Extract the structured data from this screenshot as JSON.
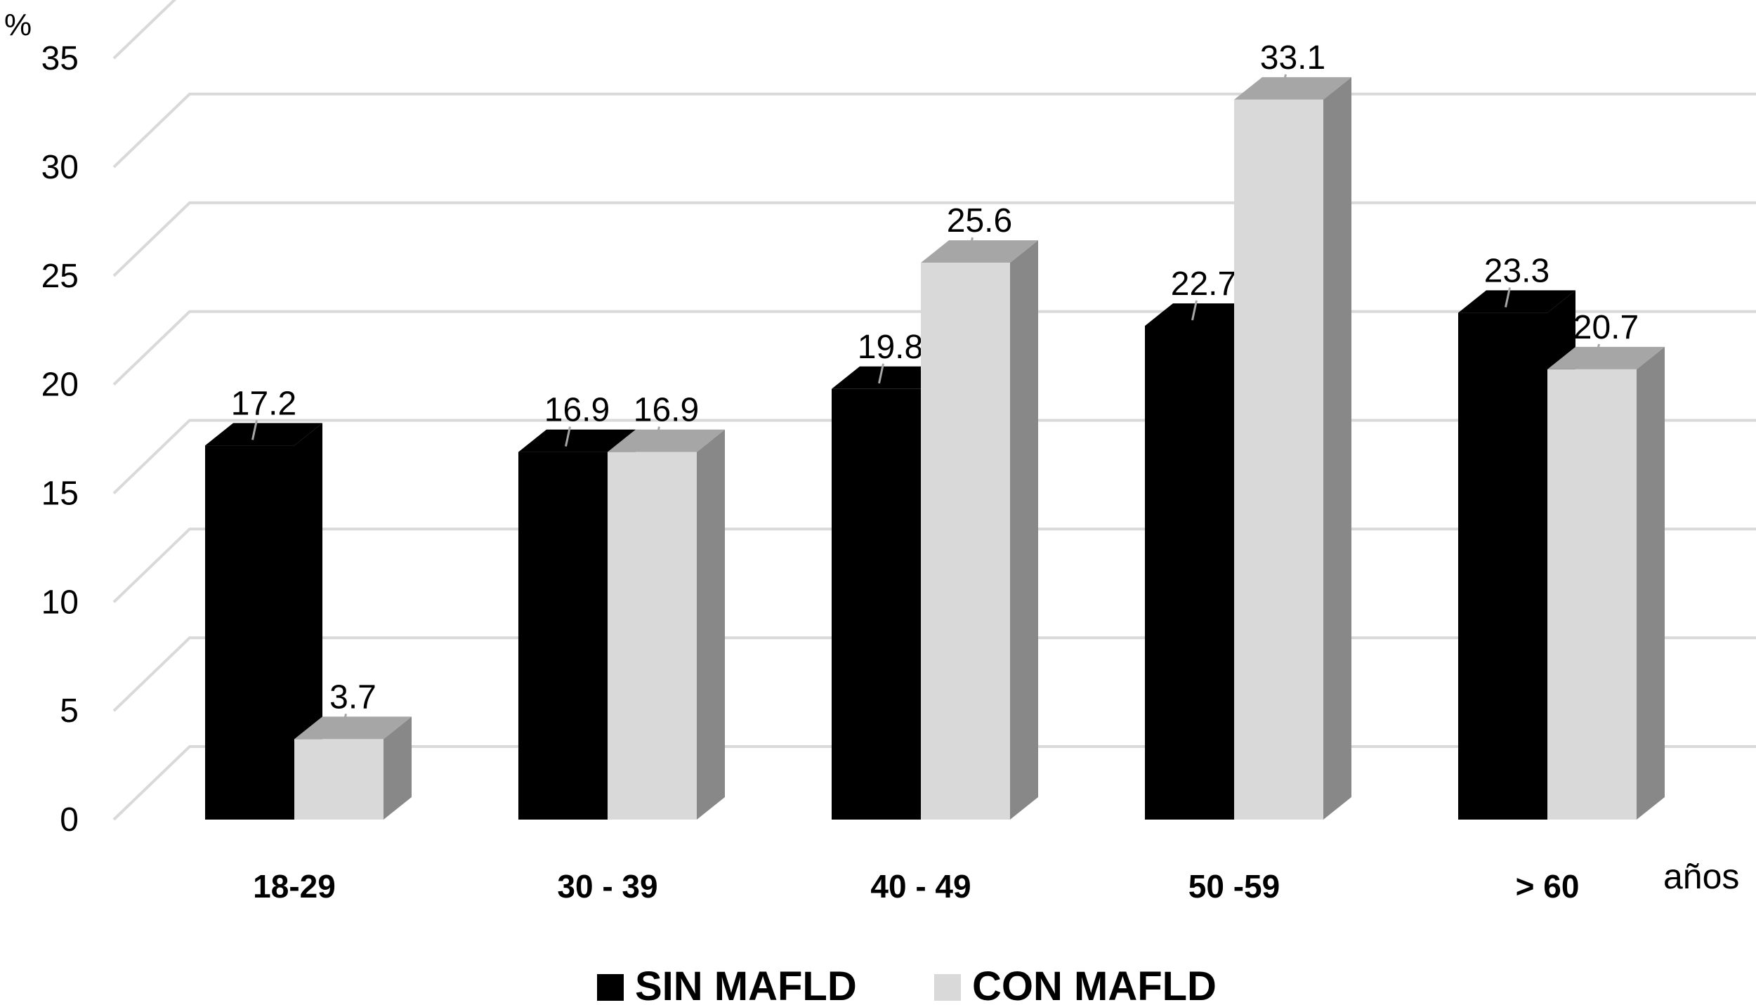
{
  "chart_data": {
    "type": "bar",
    "ylabel": "%",
    "xlabel": "años",
    "ylim": [
      0,
      35
    ],
    "y_ticks": [
      "0",
      "5",
      "10",
      "15",
      "20",
      "25",
      "30",
      "35"
    ],
    "categories": [
      "18-29",
      "30 - 39",
      "40 - 49",
      "50 -59",
      "> 60"
    ],
    "series": [
      {
        "name": "SIN MAFLD",
        "color": "#000000",
        "values": [
          17.2,
          16.9,
          19.8,
          22.7,
          23.3
        ],
        "labels": [
          "17.2",
          "16.9",
          "19.8",
          "22.7",
          "23.3"
        ]
      },
      {
        "name": "CON MAFLD",
        "color": "#d9d9d9",
        "values": [
          3.7,
          16.9,
          25.6,
          33.1,
          20.7
        ],
        "labels": [
          "3.7",
          "16.9",
          "25.6",
          "33.1",
          "20.7"
        ]
      }
    ],
    "grid": true,
    "legend_position": "bottom-center",
    "style": "3d-column"
  }
}
